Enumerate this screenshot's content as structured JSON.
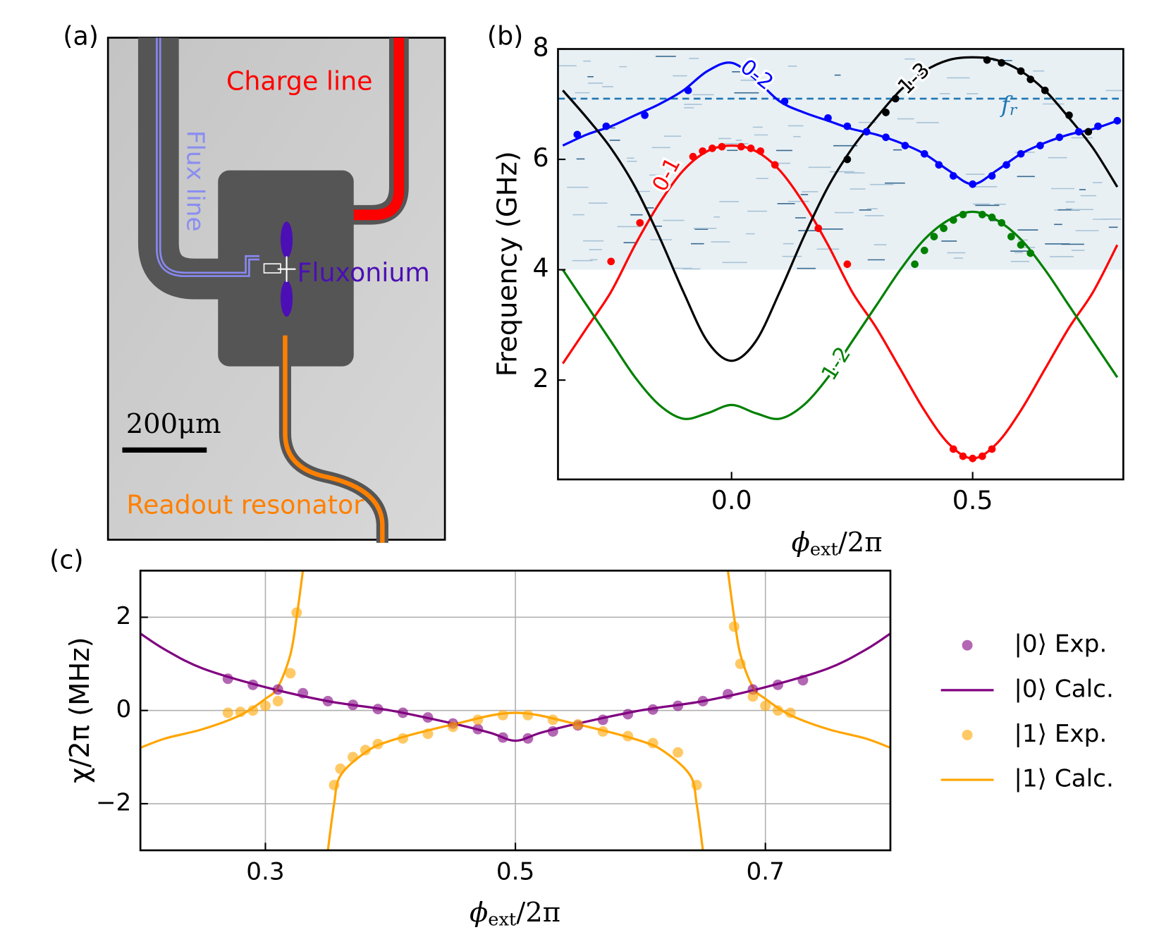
{
  "diagram": {
    "panel_label": "(a)",
    "labels": {
      "charge_line": "Charge line",
      "flux_line": "Flux line",
      "fluxonium": "Fluxonium",
      "readout_resonator": "Readout resonator",
      "scale_bar": "200μm"
    }
  },
  "chart_data": [
    {
      "type": "line",
      "panel_label": "(b)",
      "ylabel": "Frequency (GHz)",
      "xlabel": {
        "main": "ϕ",
        "sub": "ext",
        "tail": "/2π"
      },
      "xlim": [
        -0.36,
        0.8125
      ],
      "ylim": [
        0.2,
        8
      ],
      "xticks": [
        {
          "value": 0,
          "label": "0.0"
        },
        {
          "value": 0.5,
          "label": "0.5"
        }
      ],
      "yticks": [
        2,
        4,
        6,
        8
      ],
      "heatmap_ylim": [
        4,
        8
      ],
      "reference_line": {
        "value": 7.1,
        "label": "f",
        "label_sub": "r",
        "color": "#1f77b4"
      },
      "series": [
        {
          "name": "0-1",
          "color": "#ff0000",
          "style": "line",
          "x": [
            -0.35,
            -0.3,
            -0.25,
            -0.2,
            -0.15,
            -0.1,
            -0.05,
            0,
            0.05,
            0.1,
            0.15,
            0.2,
            0.25,
            0.3,
            0.35,
            0.4,
            0.45,
            0.5,
            0.55,
            0.6,
            0.65,
            0.7,
            0.75,
            0.8
          ],
          "values": [
            2.3,
            2.95,
            3.6,
            4.45,
            5.2,
            5.8,
            6.15,
            6.25,
            6.15,
            5.8,
            5.2,
            4.45,
            3.6,
            2.95,
            2.2,
            1.45,
            0.85,
            0.58,
            0.85,
            1.45,
            2.2,
            2.95,
            3.6,
            4.45
          ]
        },
        {
          "name": "0-2",
          "color": "#0000ff",
          "style": "line",
          "x": [
            -0.35,
            -0.3,
            -0.25,
            -0.2,
            -0.15,
            -0.1,
            -0.05,
            0,
            0.05,
            0.1,
            0.15,
            0.2,
            0.25,
            0.3,
            0.35,
            0.4,
            0.45,
            0.5,
            0.55,
            0.6,
            0.65,
            0.7,
            0.75,
            0.8
          ],
          "values": [
            6.25,
            6.45,
            6.6,
            6.8,
            7.0,
            7.25,
            7.6,
            7.75,
            7.45,
            7.05,
            6.85,
            6.7,
            6.55,
            6.45,
            6.3,
            6.1,
            5.8,
            5.55,
            5.8,
            6.1,
            6.3,
            6.45,
            6.55,
            6.7
          ]
        },
        {
          "name": "1-2",
          "color": "#008000",
          "style": "line",
          "x": [
            -0.35,
            -0.3,
            -0.25,
            -0.2,
            -0.15,
            -0.1,
            -0.05,
            0,
            0.05,
            0.1,
            0.15,
            0.2,
            0.25,
            0.3,
            0.35,
            0.4,
            0.45,
            0.5,
            0.55,
            0.6,
            0.65,
            0.7,
            0.75,
            0.8
          ],
          "values": [
            4.0,
            3.35,
            2.7,
            2.05,
            1.55,
            1.3,
            1.4,
            1.55,
            1.4,
            1.3,
            1.55,
            2.05,
            2.7,
            3.35,
            4.0,
            4.55,
            4.9,
            5.05,
            4.9,
            4.55,
            4.0,
            3.35,
            2.7,
            2.05
          ]
        },
        {
          "name": "1-3",
          "color": "#000000",
          "style": "line",
          "x": [
            -0.35,
            -0.3,
            -0.25,
            -0.2,
            -0.15,
            -0.1,
            -0.05,
            0,
            0.05,
            0.1,
            0.15,
            0.2,
            0.25,
            0.3,
            0.35,
            0.4,
            0.45,
            0.5,
            0.55,
            0.6,
            0.65,
            0.7,
            0.75,
            0.8
          ],
          "values": [
            7.25,
            6.75,
            6.2,
            5.5,
            4.6,
            3.6,
            2.7,
            2.35,
            2.7,
            3.6,
            4.6,
            5.5,
            6.2,
            6.75,
            7.25,
            7.6,
            7.8,
            7.85,
            7.8,
            7.6,
            7.25,
            6.75,
            6.2,
            5.5
          ]
        },
        {
          "color": "#ff0000",
          "style": "markers",
          "x": [
            -0.25,
            -0.19,
            -0.08,
            -0.06,
            -0.04,
            -0.02,
            0.02,
            0.04,
            0.06,
            0.09,
            0.18,
            0.24,
            0.46,
            0.48,
            0.5,
            0.52,
            0.54
          ],
          "values": [
            4.15,
            4.85,
            6.05,
            6.15,
            6.2,
            6.23,
            6.23,
            6.2,
            6.15,
            5.9,
            4.75,
            4.1,
            0.75,
            0.62,
            0.58,
            0.62,
            0.75
          ]
        },
        {
          "color": "#0000ff",
          "style": "markers",
          "x": [
            -0.32,
            -0.26,
            -0.18,
            -0.09,
            0.11,
            0.2,
            0.24,
            0.28,
            0.32,
            0.36,
            0.4,
            0.43,
            0.46,
            0.5,
            0.54,
            0.57,
            0.6,
            0.64,
            0.68,
            0.72,
            0.76,
            0.8
          ],
          "values": [
            6.45,
            6.6,
            6.8,
            7.25,
            7.05,
            6.75,
            6.6,
            6.5,
            6.4,
            6.25,
            6.1,
            5.9,
            5.7,
            5.55,
            5.7,
            5.9,
            6.1,
            6.25,
            6.4,
            6.5,
            6.6,
            6.7
          ]
        },
        {
          "color": "#008000",
          "style": "markers",
          "x": [
            0.38,
            0.4,
            0.42,
            0.44,
            0.46,
            0.48,
            0.52,
            0.54,
            0.56,
            0.58,
            0.6,
            0.62
          ],
          "values": [
            4.1,
            4.35,
            4.6,
            4.75,
            4.9,
            5.0,
            5.0,
            4.95,
            4.85,
            4.6,
            4.45,
            4.3
          ]
        },
        {
          "color": "#000000",
          "style": "markers",
          "x": [
            0.24,
            0.32,
            0.34,
            0.37,
            0.4,
            0.53,
            0.56,
            0.6,
            0.62,
            0.65,
            0.7,
            0.74
          ],
          "values": [
            6.0,
            6.85,
            7.1,
            7.35,
            7.55,
            7.8,
            7.75,
            7.6,
            7.45,
            7.25,
            6.8,
            6.5
          ]
        }
      ]
    },
    {
      "type": "line",
      "panel_label": "(c)",
      "ylabel": "χ/2π (MHz)",
      "xlabel": {
        "main": "ϕ",
        "sub": "ext",
        "tail": "/2π"
      },
      "xlim": [
        0.2,
        0.8
      ],
      "ylim": [
        -3,
        3
      ],
      "xticks": [
        0.3,
        0.5,
        0.7
      ],
      "yticks": [
        {
          "value": -2,
          "label": "−2"
        },
        0,
        2
      ],
      "grid": true,
      "legend": "outside right",
      "series": [
        {
          "name": "|0⟩ Exp.",
          "color": "#800080",
          "style": "markers",
          "x": [
            0.27,
            0.29,
            0.31,
            0.33,
            0.35,
            0.37,
            0.39,
            0.41,
            0.43,
            0.45,
            0.47,
            0.49,
            0.51,
            0.53,
            0.55,
            0.57,
            0.59,
            0.61,
            0.63,
            0.65,
            0.67,
            0.69,
            0.71,
            0.73
          ],
          "values": [
            0.68,
            0.55,
            0.45,
            0.37,
            0.2,
            0.12,
            0.03,
            -0.05,
            -0.15,
            -0.28,
            -0.4,
            -0.58,
            -0.6,
            -0.45,
            -0.32,
            -0.2,
            -0.08,
            0.02,
            0.1,
            0.2,
            0.35,
            0.45,
            0.55,
            0.65
          ]
        },
        {
          "name": "|0⟩ Calc.",
          "color": "#800080",
          "style": "line",
          "x": [
            0.2,
            0.22,
            0.25,
            0.3,
            0.35,
            0.4,
            0.45,
            0.48,
            0.5,
            0.52,
            0.55,
            0.6,
            0.65,
            0.7,
            0.75,
            0.78,
            0.8
          ],
          "values": [
            1.65,
            1.3,
            0.9,
            0.5,
            0.2,
            0.0,
            -0.28,
            -0.48,
            -0.65,
            -0.48,
            -0.28,
            0.0,
            0.2,
            0.5,
            0.9,
            1.3,
            1.65
          ]
        },
        {
          "name": "|1⟩ Exp.",
          "color": "#ffa500",
          "style": "markers",
          "x": [
            0.27,
            0.28,
            0.29,
            0.3,
            0.31,
            0.32,
            0.325,
            0.355,
            0.36,
            0.37,
            0.38,
            0.39,
            0.41,
            0.43,
            0.45,
            0.47,
            0.49,
            0.51,
            0.53,
            0.55,
            0.57,
            0.59,
            0.61,
            0.63,
            0.645,
            0.675,
            0.68,
            0.69,
            0.7,
            0.71,
            0.72
          ],
          "values": [
            -0.05,
            -0.03,
            0.0,
            0.1,
            0.2,
            0.8,
            2.1,
            -1.6,
            -1.25,
            -1.0,
            -0.85,
            -0.72,
            -0.6,
            -0.5,
            -0.35,
            -0.2,
            -0.1,
            -0.1,
            -0.2,
            -0.3,
            -0.45,
            -0.55,
            -0.7,
            -0.9,
            -1.6,
            1.8,
            1.0,
            0.3,
            0.1,
            0.0,
            -0.05
          ]
        },
        {
          "name": "|1⟩ Calc.",
          "color": "#ffa500",
          "style": "line",
          "x": [
            0.2,
            0.22,
            0.25,
            0.28,
            0.3,
            0.31,
            0.32,
            0.325,
            0.33,
            null,
            0.35,
            0.355,
            0.36,
            0.38,
            0.4,
            0.45,
            0.5,
            0.55,
            0.6,
            0.62,
            0.64,
            0.645,
            0.65,
            null,
            0.67,
            0.675,
            0.68,
            0.69,
            0.7,
            0.72,
            0.75,
            0.78,
            0.8
          ],
          "values": [
            -0.8,
            -0.6,
            -0.4,
            -0.1,
            0.25,
            0.5,
            1.2,
            2.0,
            3.0,
            null,
            -3.0,
            -2.0,
            -1.4,
            -0.9,
            -0.65,
            -0.3,
            -0.05,
            -0.3,
            -0.65,
            -0.9,
            -1.4,
            -2.0,
            -3.0,
            null,
            3.0,
            2.0,
            1.2,
            0.5,
            0.25,
            -0.1,
            -0.4,
            -0.6,
            -0.8
          ]
        }
      ]
    }
  ]
}
